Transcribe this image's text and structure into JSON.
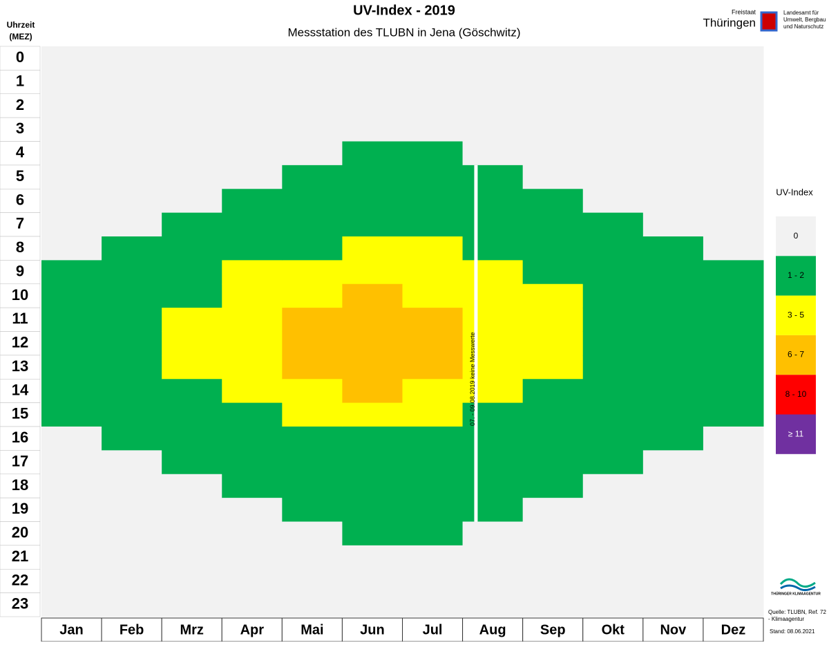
{
  "chart_data": {
    "type": "heatmap",
    "title": "UV-Index - 2019",
    "subtitle": "Messstation des TLUBN in Jena (Göschwitz)",
    "y_axis_label": "Uhrzeit (MEZ)",
    "categories": [
      "Jan",
      "Feb",
      "Mrz",
      "Apr",
      "Mai",
      "Jun",
      "Jul",
      "Aug",
      "Sep",
      "Okt",
      "Nov",
      "Dez"
    ],
    "hours": [
      0,
      1,
      2,
      3,
      4,
      5,
      6,
      7,
      8,
      9,
      10,
      11,
      12,
      13,
      14,
      15,
      16,
      17,
      18,
      19,
      20,
      21,
      22,
      23
    ],
    "legend_title": "UV-Index",
    "legend": [
      {
        "label": "0",
        "color": "#f2f2f2"
      },
      {
        "label": "1 - 2",
        "color": "#00b050"
      },
      {
        "label": "3 - 5",
        "color": "#ffff00"
      },
      {
        "label": "6 - 7",
        "color": "#ffc000"
      },
      {
        "label": "8 - 10",
        "color": "#ff0000"
      },
      {
        "label": "≥ 11",
        "color": "#7030a0"
      }
    ],
    "z": [
      [
        0,
        0,
        0,
        0,
        0,
        0,
        0,
        0,
        0,
        1,
        1,
        1,
        1,
        1,
        1,
        1,
        0,
        0,
        0,
        0,
        0,
        0,
        0,
        0
      ],
      [
        0,
        0,
        0,
        0,
        0,
        0,
        0,
        0,
        1,
        1,
        1,
        1,
        1,
        1,
        1,
        1,
        1,
        0,
        0,
        0,
        0,
        0,
        0,
        0
      ],
      [
        0,
        0,
        0,
        0,
        0,
        0,
        0,
        1,
        1,
        1,
        1,
        2,
        2,
        2,
        1,
        1,
        1,
        1,
        0,
        0,
        0,
        0,
        0,
        0
      ],
      [
        0,
        0,
        0,
        0,
        0,
        0,
        1,
        1,
        1,
        2,
        2,
        2,
        2,
        2,
        2,
        1,
        1,
        1,
        1,
        0,
        0,
        0,
        0,
        0
      ],
      [
        0,
        0,
        0,
        0,
        0,
        1,
        1,
        1,
        1,
        2,
        2,
        3,
        3,
        3,
        2,
        2,
        1,
        1,
        1,
        1,
        0,
        0,
        0,
        0
      ],
      [
        0,
        0,
        0,
        0,
        1,
        1,
        1,
        1,
        2,
        2,
        3,
        3,
        3,
        3,
        3,
        2,
        1,
        1,
        1,
        1,
        1,
        0,
        0,
        0
      ],
      [
        0,
        0,
        0,
        0,
        1,
        1,
        1,
        1,
        2,
        2,
        2,
        3,
        3,
        3,
        2,
        2,
        1,
        1,
        1,
        1,
        1,
        0,
        0,
        0
      ],
      [
        0,
        0,
        0,
        0,
        0,
        1,
        1,
        1,
        1,
        2,
        2,
        2,
        2,
        2,
        2,
        1,
        1,
        1,
        1,
        1,
        0,
        0,
        0,
        0
      ],
      [
        0,
        0,
        0,
        0,
        0,
        0,
        1,
        1,
        1,
        1,
        2,
        2,
        2,
        2,
        1,
        1,
        1,
        1,
        1,
        0,
        0,
        0,
        0,
        0
      ],
      [
        0,
        0,
        0,
        0,
        0,
        0,
        0,
        1,
        1,
        1,
        1,
        1,
        1,
        1,
        1,
        1,
        1,
        1,
        0,
        0,
        0,
        0,
        0,
        0
      ],
      [
        0,
        0,
        0,
        0,
        0,
        0,
        0,
        0,
        1,
        1,
        1,
        1,
        1,
        1,
        1,
        1,
        1,
        0,
        0,
        0,
        0,
        0,
        0,
        0
      ],
      [
        0,
        0,
        0,
        0,
        0,
        0,
        0,
        0,
        0,
        1,
        1,
        1,
        1,
        1,
        1,
        1,
        0,
        0,
        0,
        0,
        0,
        0,
        0,
        0
      ]
    ],
    "annotation": "07. - 09.08.2019 keine Messwerte",
    "logo": {
      "state_small": "Freistaat",
      "state": "Thüringen",
      "agency": "Landesamt für Umwelt, Bergbau und Naturschutz",
      "klima": "THÜRINGER KLIMAAGENTUR"
    },
    "source": "Quelle: TLUBN, Ref. 72 - Klimaagentur",
    "stand": "Stand: 08.06.2021"
  }
}
